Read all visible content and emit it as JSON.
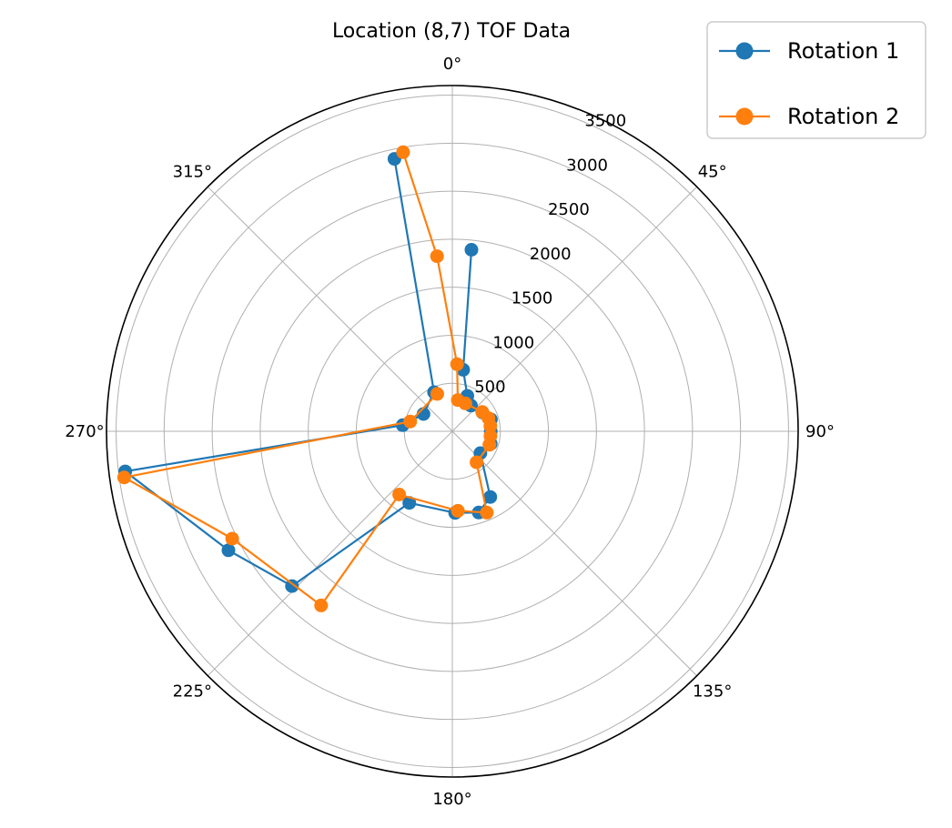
{
  "chart_data": {
    "type": "polar-line",
    "title": "Location (8,7) TOF Data",
    "theta_ticks": [
      "0°",
      "45°",
      "90°",
      "135°",
      "180°",
      "225°",
      "270°",
      "315°"
    ],
    "theta_tick_values": [
      0,
      45,
      90,
      135,
      180,
      225,
      270,
      315
    ],
    "r_ticks": [
      "500",
      "1000",
      "1500",
      "2000",
      "2500",
      "3000",
      "3500"
    ],
    "r_tick_values": [
      500,
      1000,
      1500,
      2000,
      2500,
      3000,
      3500
    ],
    "rlim": [
      0,
      3600
    ],
    "theta_zero": "top",
    "theta_direction": "clockwise",
    "grid": true,
    "legend_position": "top-right",
    "series": [
      {
        "name": "Rotation 1",
        "color": "#1f77b4",
        "points": [
          {
            "theta": 6,
            "r": 1900
          },
          {
            "theta": 10,
            "r": 650
          },
          {
            "theta": 23,
            "r": 400
          },
          {
            "theta": 36,
            "r": 330
          },
          {
            "theta": 58,
            "r": 370
          },
          {
            "theta": 73,
            "r": 420
          },
          {
            "theta": 90,
            "r": 400
          },
          {
            "theta": 108,
            "r": 420
          },
          {
            "theta": 128,
            "r": 370
          },
          {
            "theta": 150,
            "r": 790
          },
          {
            "theta": 162,
            "r": 890
          },
          {
            "theta": 178,
            "r": 850
          },
          {
            "theta": 211,
            "r": 870
          },
          {
            "theta": 226,
            "r": 2320
          },
          {
            "theta": 242,
            "r": 2640
          },
          {
            "theta": 263,
            "r": 3430
          },
          {
            "theta": 277,
            "r": 520
          },
          {
            "theta": 301,
            "r": 350
          },
          {
            "theta": 335,
            "r": 450
          },
          {
            "theta": 348,
            "r": 2900
          }
        ]
      },
      {
        "name": "Rotation 2",
        "color": "#ff7f0e",
        "points": [
          {
            "theta": 350,
            "r": 2950
          },
          {
            "theta": 355,
            "r": 1830
          },
          {
            "theta": 4,
            "r": 700
          },
          {
            "theta": 10,
            "r": 330
          },
          {
            "theta": 25,
            "r": 320
          },
          {
            "theta": 57,
            "r": 370
          },
          {
            "theta": 70,
            "r": 400
          },
          {
            "theta": 82,
            "r": 400
          },
          {
            "theta": 97,
            "r": 400
          },
          {
            "theta": 110,
            "r": 410
          },
          {
            "theta": 142,
            "r": 410
          },
          {
            "theta": 157,
            "r": 920
          },
          {
            "theta": 176,
            "r": 830
          },
          {
            "theta": 220,
            "r": 860
          },
          {
            "theta": 217,
            "r": 2270
          },
          {
            "theta": 244,
            "r": 2550
          },
          {
            "theta": 262,
            "r": 3450
          },
          {
            "theta": 283,
            "r": 450
          },
          {
            "theta": 338,
            "r": 420
          }
        ]
      }
    ]
  }
}
